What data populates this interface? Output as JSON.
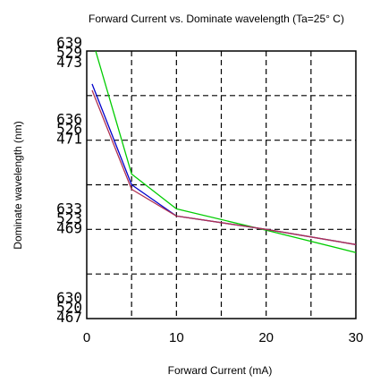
{
  "chart_data": {
    "type": "line",
    "title": "Forward Current vs. Dominate wavelength (Ta=25° C)",
    "xlabel": "Forward  Current  (mA)",
    "ylabel": "Dominate wavelength (nm)",
    "xlim": [
      0,
      30
    ],
    "ylim": [
      0,
      3
    ],
    "x_ticks": [
      0,
      10,
      20,
      30
    ],
    "y_tick_groups": [
      {
        "level": 3,
        "labels": [
          "639",
          "529",
          "473"
        ]
      },
      {
        "level": 2,
        "labels": [
          "636",
          "526",
          "471"
        ]
      },
      {
        "level": 1,
        "labels": [
          "633",
          "523",
          "469"
        ]
      },
      {
        "level": 0,
        "labels": [
          "630",
          "520",
          "467"
        ]
      }
    ],
    "grid": true,
    "series": [
      {
        "color": "#00cc00",
        "points": [
          [
            1,
            3.0
          ],
          [
            5,
            1.62
          ],
          [
            10,
            1.23
          ],
          [
            20,
            0.99
          ],
          [
            30,
            0.74
          ]
        ]
      },
      {
        "color": "#0000cc",
        "points": [
          [
            0.6,
            2.63
          ],
          [
            5,
            1.5
          ],
          [
            10,
            1.15
          ],
          [
            20,
            1.0
          ],
          [
            30,
            0.83
          ]
        ]
      },
      {
        "color": "#b03050",
        "points": [
          [
            0.6,
            2.56
          ],
          [
            5,
            1.45
          ],
          [
            10,
            1.15
          ],
          [
            20,
            1.0
          ],
          [
            30,
            0.83
          ]
        ]
      }
    ]
  }
}
